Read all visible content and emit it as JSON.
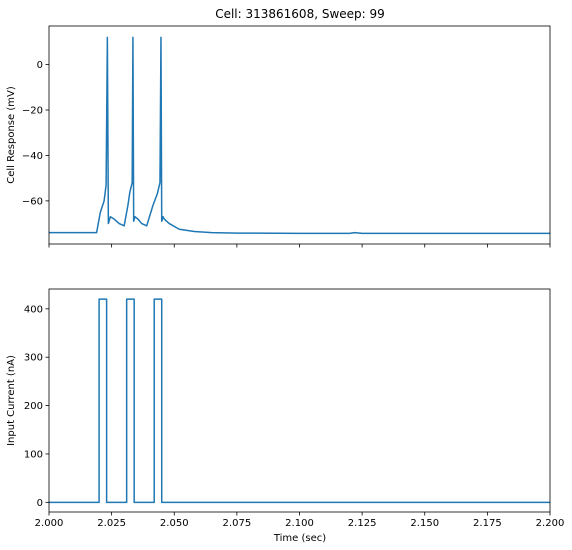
{
  "chart_data": [
    {
      "type": "line",
      "title": "Cell: 313861608, Sweep: 99",
      "xlabel": "",
      "ylabel": "Cell Response (mV)",
      "xlim": [
        2.0,
        2.2
      ],
      "ylim": [
        -79,
        17
      ],
      "x_ticks": [
        2.0,
        2.025,
        2.05,
        2.075,
        2.1,
        2.125,
        2.15,
        2.175,
        2.2
      ],
      "y_ticks": [
        0,
        -20,
        -40,
        -60
      ],
      "y_tick_labels": [
        "0",
        "−20",
        "−40",
        "−60"
      ],
      "line_color": "#1f77b4",
      "grid": false,
      "series": [
        {
          "x": [
            2.0,
            2.019,
            2.0205,
            2.022,
            2.0228,
            2.0233,
            2.0237,
            2.0245,
            2.026,
            2.028,
            2.03,
            2.0315,
            2.0323,
            2.0332,
            2.0335,
            2.0338,
            2.0343,
            2.0355,
            2.037,
            2.039,
            2.0415,
            2.0432,
            2.0443,
            2.0447,
            2.045,
            2.0455,
            2.046,
            2.048,
            2.052,
            2.058,
            2.065,
            2.075,
            2.1,
            2.12,
            2.122,
            2.125,
            2.15,
            2.175,
            2.2
          ],
          "y": [
            -74,
            -74,
            -65,
            -60,
            -53,
            12,
            -70,
            -67,
            -68,
            -70,
            -71,
            -62,
            -56,
            -52,
            12,
            -69,
            -67,
            -68,
            -70,
            -71,
            -62,
            -57,
            -52,
            12,
            -69,
            -67,
            -68,
            -70,
            -72.5,
            -73.5,
            -74,
            -74.2,
            -74.3,
            -74.3,
            -74.0,
            -74.3,
            -74.3,
            -74.3,
            -74.3
          ]
        }
      ]
    },
    {
      "type": "line",
      "title": "",
      "xlabel": "Time (sec)",
      "ylabel": "Input Current (nA)",
      "xlim": [
        2.0,
        2.2
      ],
      "ylim": [
        -20,
        441
      ],
      "x_ticks": [
        2.0,
        2.025,
        2.05,
        2.075,
        2.1,
        2.125,
        2.15,
        2.175,
        2.2
      ],
      "x_tick_labels": [
        "2.000",
        "2.025",
        "2.050",
        "2.075",
        "2.100",
        "2.125",
        "2.150",
        "2.175",
        "2.200"
      ],
      "y_ticks": [
        0,
        100,
        200,
        300,
        400
      ],
      "y_tick_labels": [
        "0",
        "100",
        "200",
        "300",
        "400"
      ],
      "line_color": "#1f77b4",
      "grid": false,
      "series": [
        {
          "x": [
            2.0,
            2.02,
            2.02,
            2.023,
            2.023,
            2.031,
            2.031,
            2.034,
            2.034,
            2.042,
            2.042,
            2.045,
            2.045,
            2.2
          ],
          "y": [
            0,
            0,
            420,
            420,
            0,
            0,
            420,
            420,
            0,
            0,
            420,
            420,
            0,
            0
          ]
        }
      ]
    }
  ]
}
